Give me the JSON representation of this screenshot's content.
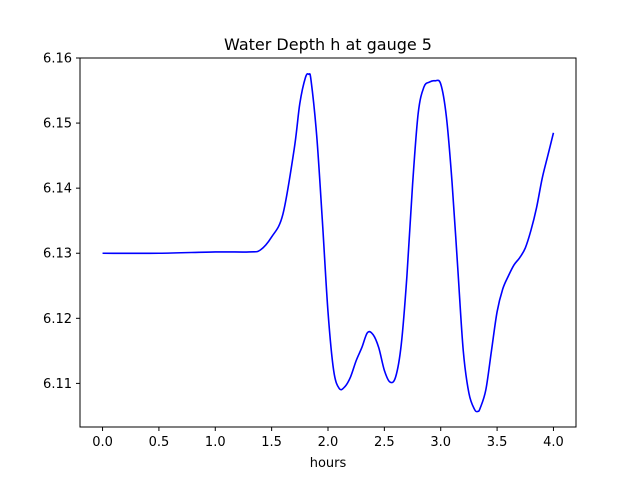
{
  "chart_data": {
    "type": "line",
    "title": "Water Depth h at gauge 5",
    "xlabel": "hours",
    "ylabel": "",
    "xlim": [
      -0.2,
      4.2
    ],
    "ylim": [
      6.1033,
      6.16
    ],
    "x_ticks": [
      0.0,
      0.5,
      1.0,
      1.5,
      2.0,
      2.5,
      3.0,
      3.5,
      4.0
    ],
    "x_tick_labels": [
      "0.0",
      "0.5",
      "1.0",
      "1.5",
      "2.0",
      "2.5",
      "3.0",
      "3.5",
      "4.0"
    ],
    "y_ticks": [
      6.11,
      6.12,
      6.13,
      6.14,
      6.15,
      6.16
    ],
    "y_tick_labels": [
      "6.11",
      "6.12",
      "6.13",
      "6.14",
      "6.15",
      "6.16"
    ],
    "grid": false,
    "series": [
      {
        "color": "#0000ff",
        "x": [
          0.0,
          0.5,
          1.0,
          1.3,
          1.4,
          1.5,
          1.6,
          1.7,
          1.75,
          1.8,
          1.83,
          1.85,
          1.9,
          1.95,
          2.0,
          2.05,
          2.1,
          2.15,
          2.2,
          2.25,
          2.3,
          2.35,
          2.4,
          2.45,
          2.5,
          2.55,
          2.6,
          2.65,
          2.7,
          2.75,
          2.8,
          2.85,
          2.9,
          2.95,
          3.0,
          3.05,
          3.1,
          3.15,
          3.2,
          3.25,
          3.3,
          3.33,
          3.35,
          3.4,
          3.45,
          3.5,
          3.55,
          3.6,
          3.65,
          3.7,
          3.75,
          3.8,
          3.85,
          3.9,
          3.95,
          4.0
        ],
        "y": [
          6.13,
          6.13,
          6.1302,
          6.1302,
          6.1305,
          6.1325,
          6.136,
          6.146,
          6.153,
          6.157,
          6.1575,
          6.1565,
          6.148,
          6.135,
          6.121,
          6.112,
          6.1092,
          6.1095,
          6.111,
          6.1135,
          6.1155,
          6.1178,
          6.1175,
          6.1155,
          6.112,
          6.1102,
          6.111,
          6.116,
          6.1265,
          6.1405,
          6.1515,
          6.1555,
          6.1563,
          6.1565,
          6.156,
          6.151,
          6.141,
          6.128,
          6.115,
          6.1085,
          6.106,
          6.1057,
          6.1062,
          6.109,
          6.115,
          6.121,
          6.1245,
          6.1265,
          6.1282,
          6.1293,
          6.1308,
          6.1335,
          6.137,
          6.1415,
          6.145,
          6.1485
        ]
      }
    ]
  }
}
